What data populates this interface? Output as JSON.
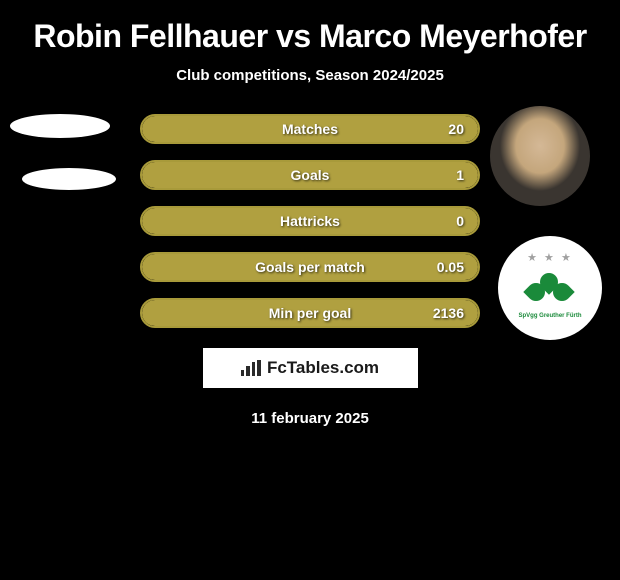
{
  "title": "Robin Fellhauer vs Marco Meyerhofer",
  "subtitle": "Club competitions, Season 2024/2025",
  "colors": {
    "background": "#000000",
    "bar_border": "#a89a3a",
    "bar_fill": "#b0a040",
    "text": "#ffffff",
    "brand_bg": "#ffffff",
    "brand_text": "#1a1a1a",
    "club_green": "#1a8a3a"
  },
  "stats": [
    {
      "label": "Matches",
      "value": "20",
      "fill_pct": 100
    },
    {
      "label": "Goals",
      "value": "1",
      "fill_pct": 100
    },
    {
      "label": "Hattricks",
      "value": "0",
      "fill_pct": 100
    },
    {
      "label": "Goals per match",
      "value": "0.05",
      "fill_pct": 100
    },
    {
      "label": "Min per goal",
      "value": "2136",
      "fill_pct": 100
    }
  ],
  "branding": "FcTables.com",
  "date": "11 february 2025",
  "avatars": {
    "right_top_type": "player-photo",
    "right_bottom_type": "club-crest",
    "club_text": "SpVgg Greuther Fürth"
  }
}
